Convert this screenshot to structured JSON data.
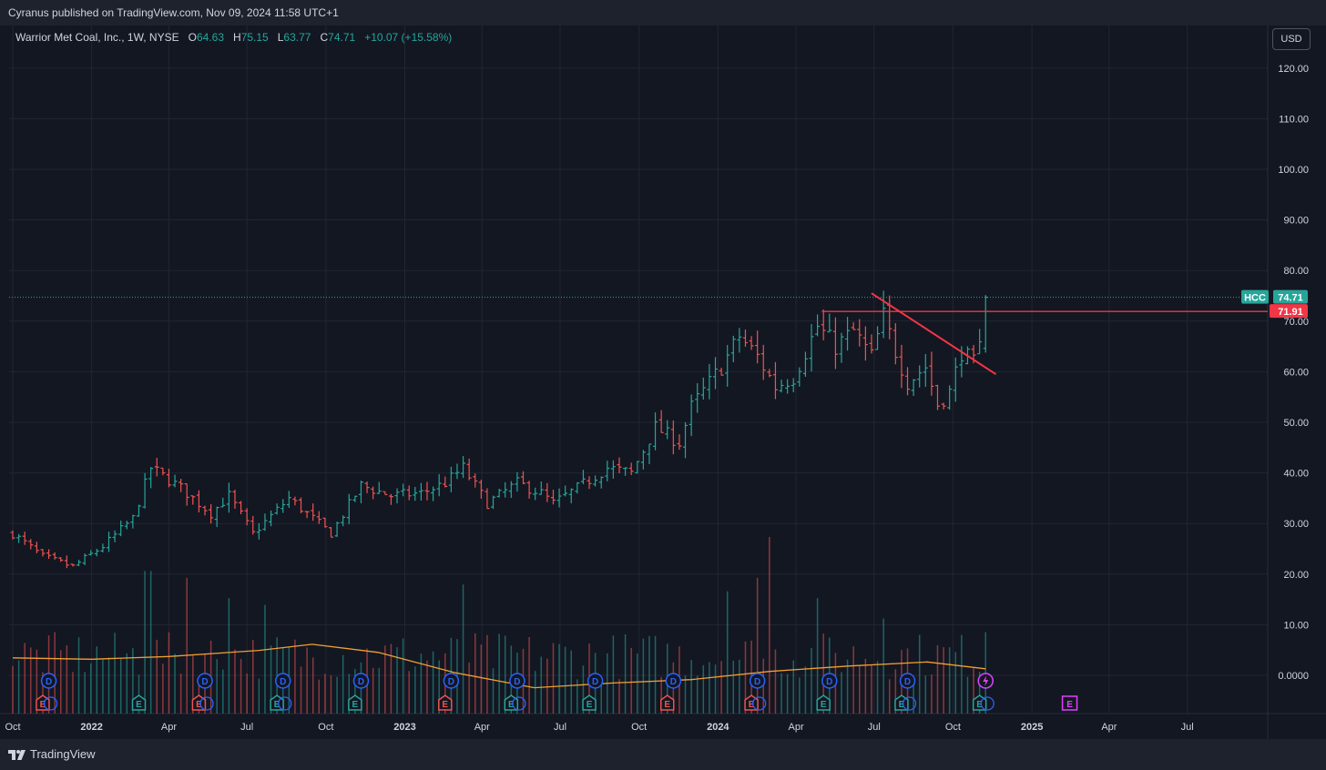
{
  "header": {
    "publisher_line": "Cyranus published on TradingView.com, Nov 09, 2024 11:58 UTC+1"
  },
  "legend": {
    "title": "Warrior Met Coal, Inc., 1W, NYSE",
    "open_label": "O",
    "open_value": "64.63",
    "high_label": "H",
    "high_value": "75.15",
    "low_label": "L",
    "low_value": "63.77",
    "close_label": "C",
    "close_value": "74.71",
    "change": "+10.07 (+15.58%)"
  },
  "currency_button": "USD",
  "footer": {
    "brand": "TradingView"
  },
  "colors": {
    "up": "#26a69a",
    "down": "#ef5350",
    "volume_ma": "#f0a030",
    "drawing": "#f23645",
    "background": "#131722",
    "grid": "#232632"
  },
  "chart_data": {
    "type": "ohlc",
    "symbol": "HCC",
    "interval": "1W",
    "y_axis": {
      "ticks": [
        "120.00",
        "110.00",
        "100.00",
        "90.00",
        "80.00",
        "70.00",
        "60.00",
        "50.00",
        "40.00",
        "30.00",
        "20.00",
        "10.00",
        "0.0000"
      ],
      "ylim": [
        -4,
        126
      ]
    },
    "x_axis": {
      "ticks": [
        "Oct",
        "2022",
        "Apr",
        "Jul",
        "Oct",
        "2023",
        "Apr",
        "Jul",
        "Oct",
        "2024",
        "Apr",
        "Jul",
        "Oct",
        "2025",
        "Apr",
        "Jul"
      ],
      "start_date": "2021-10-01",
      "end_date": "2025-08-15"
    },
    "last_price": {
      "symbol_tag": "HCC",
      "value": 74.71
    },
    "horizontal_line": {
      "value": 71.91,
      "label": "71.91",
      "start_date": "2024-05-01"
    },
    "trendline": {
      "from": [
        "2024-06-28",
        75.5
      ],
      "to": [
        "2024-11-20",
        59.5
      ]
    },
    "anchors": [
      [
        "2021-10-01",
        28.0
      ],
      [
        "2021-11-05",
        23.5
      ],
      [
        "2021-12-10",
        21.5
      ],
      [
        "2022-01-14",
        25.5
      ],
      [
        "2022-02-18",
        31.0
      ],
      [
        "2022-03-11",
        41.0
      ],
      [
        "2022-04-15",
        37.0
      ],
      [
        "2022-05-20",
        32.0
      ],
      [
        "2022-06-10",
        35.5
      ],
      [
        "2022-07-08",
        28.0
      ],
      [
        "2022-08-19",
        35.0
      ],
      [
        "2022-09-16",
        31.0
      ],
      [
        "2022-10-07",
        28.0
      ],
      [
        "2022-11-11",
        37.5
      ],
      [
        "2022-12-16",
        35.5
      ],
      [
        "2023-01-20",
        36.0
      ],
      [
        "2023-02-17",
        38.0
      ],
      [
        "2023-03-10",
        41.0
      ],
      [
        "2023-04-07",
        34.0
      ],
      [
        "2023-05-12",
        38.0
      ],
      [
        "2023-06-09",
        36.0
      ],
      [
        "2023-06-23",
        34.0
      ],
      [
        "2023-07-21",
        37.0
      ],
      [
        "2023-08-25",
        41.0
      ],
      [
        "2023-09-22",
        40.0
      ],
      [
        "2023-10-20",
        49.0
      ],
      [
        "2023-11-17",
        46.0
      ],
      [
        "2023-12-01",
        53.0
      ],
      [
        "2024-01-05",
        61.0
      ],
      [
        "2024-01-26",
        67.0
      ],
      [
        "2024-02-16",
        63.0
      ],
      [
        "2024-03-08",
        57.0
      ],
      [
        "2024-03-29",
        59.0
      ],
      [
        "2024-04-26",
        69.0
      ],
      [
        "2024-05-17",
        65.0
      ],
      [
        "2024-06-07",
        68.0
      ],
      [
        "2024-06-28",
        63.0
      ],
      [
        "2024-07-12",
        71.0
      ],
      [
        "2024-07-26",
        64.0
      ],
      [
        "2024-08-09",
        58.0
      ],
      [
        "2024-08-30",
        61.0
      ],
      [
        "2024-09-13",
        53.5
      ],
      [
        "2024-09-27",
        56.0
      ],
      [
        "2024-10-11",
        64.0
      ],
      [
        "2024-10-25",
        61.5
      ],
      [
        "2024-11-01",
        64.6
      ],
      [
        "2024-11-08",
        74.7
      ]
    ],
    "volume": {
      "max_volume": 26,
      "ma_points": [
        [
          "2021-10-01",
          8.2
        ],
        [
          "2022-01-01",
          8.0
        ],
        [
          "2022-04-01",
          8.4
        ],
        [
          "2022-07-15",
          9.3
        ],
        [
          "2022-09-15",
          10.2
        ],
        [
          "2022-12-01",
          9.0
        ],
        [
          "2023-03-01",
          6.0
        ],
        [
          "2023-06-01",
          3.8
        ],
        [
          "2023-09-01",
          4.5
        ],
        [
          "2023-12-01",
          5.0
        ],
        [
          "2024-03-01",
          6.2
        ],
        [
          "2024-06-01",
          7.0
        ],
        [
          "2024-09-01",
          7.6
        ],
        [
          "2024-11-08",
          6.6
        ]
      ],
      "spikes": [
        [
          "2022-03-04",
          21
        ],
        [
          "2022-03-11",
          21
        ],
        [
          "2022-04-22",
          20
        ],
        [
          "2022-06-10",
          17
        ],
        [
          "2022-07-22",
          16
        ],
        [
          "2023-03-10",
          19
        ],
        [
          "2024-01-12",
          18
        ],
        [
          "2024-02-16",
          20
        ],
        [
          "2024-03-01",
          26
        ],
        [
          "2024-04-26",
          17
        ],
        [
          "2024-07-12",
          14
        ],
        [
          "2024-11-08",
          12
        ]
      ]
    },
    "events": [
      {
        "type": "D",
        "date": "2021-11-12"
      },
      {
        "type": "E",
        "date": "2021-11-05"
      },
      {
        "type": "D",
        "date": "2022-05-13"
      },
      {
        "type": "E",
        "date": "2022-05-06"
      },
      {
        "type": "E",
        "date": "2022-02-25"
      },
      {
        "type": "E",
        "date": "2022-08-05"
      },
      {
        "type": "D",
        "date": "2022-08-12"
      },
      {
        "type": "D",
        "date": "2022-11-11"
      },
      {
        "type": "E",
        "date": "2022-11-04"
      },
      {
        "type": "D",
        "date": "2023-02-24"
      },
      {
        "type": "E",
        "date": "2023-02-17"
      },
      {
        "type": "D",
        "date": "2023-05-12"
      },
      {
        "type": "E",
        "date": "2023-05-05"
      },
      {
        "type": "D",
        "date": "2023-08-11"
      },
      {
        "type": "E",
        "date": "2023-08-04"
      },
      {
        "type": "D",
        "date": "2023-11-10"
      },
      {
        "type": "E",
        "date": "2023-11-03"
      },
      {
        "type": "D",
        "date": "2024-02-16"
      },
      {
        "type": "E",
        "date": "2024-02-09"
      },
      {
        "type": "D",
        "date": "2024-05-10"
      },
      {
        "type": "E",
        "date": "2024-05-03"
      },
      {
        "type": "D",
        "date": "2024-08-09"
      },
      {
        "type": "E",
        "date": "2024-08-02"
      },
      {
        "type": "D",
        "date": "2024-11-08"
      },
      {
        "type": "E",
        "date": "2024-11-01"
      },
      {
        "type": "split",
        "date": "2024-11-08"
      },
      {
        "type": "E-future",
        "date": "2025-02-14"
      }
    ]
  }
}
